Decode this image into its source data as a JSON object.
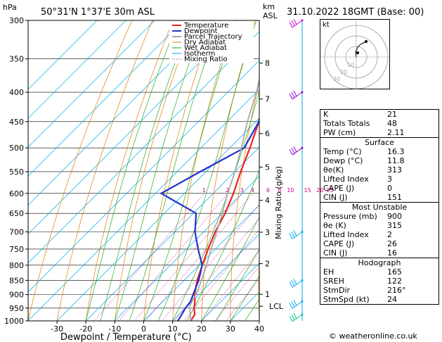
{
  "station": {
    "location": "50°31'N  1°37'E  30m  ASL",
    "datetime": "31.10.2022  18GMT  (Base: 00)",
    "credit": "© weatheronline.co.uk"
  },
  "chart_data": {
    "type": "skew-t",
    "title": "",
    "xlabel": "Dewpoint / Temperature (°C)",
    "ylabel_left": "hPa",
    "ylabel_right_top": "km",
    "ylabel_right_sub": "ASL",
    "mixing_axis_label": "Mixing Ratio (g/kg)",
    "xlim": [
      -40,
      40
    ],
    "x_ticks": [
      -30,
      -20,
      -10,
      0,
      10,
      20,
      30,
      40
    ],
    "pressure_range": [
      300,
      1000
    ],
    "pressure_ticks": [
      300,
      350,
      400,
      450,
      500,
      550,
      600,
      650,
      700,
      750,
      800,
      850,
      900,
      950,
      1000
    ],
    "km_ticks": [
      {
        "km": "8",
        "p": 356
      },
      {
        "km": "7",
        "p": 411
      },
      {
        "km": "6",
        "p": 472
      },
      {
        "km": "5",
        "p": 540
      },
      {
        "km": "4",
        "p": 617
      },
      {
        "km": "3",
        "p": 701
      },
      {
        "km": "2",
        "p": 795
      },
      {
        "km": "1",
        "p": 899
      }
    ],
    "lcl": {
      "label": "LCL",
      "p": 943
    },
    "mixing_ratio_labels": [
      "1",
      "2",
      "3",
      "4",
      "6",
      "8",
      "10",
      "15",
      "20",
      "25"
    ],
    "mixing_ratio_values": [
      1,
      2,
      3,
      4,
      6,
      8,
      10,
      15,
      20,
      25
    ],
    "legend": [
      "Temperature",
      "Dewpoint",
      "Parcel Trajectory",
      "Dry Adiabat",
      "Wet Adiabat",
      "Isotherm",
      "Mixing Ratio"
    ],
    "series": [
      {
        "name": "Temperature",
        "color": "#ee2222",
        "points": [
          [
            1000,
            16.3
          ],
          [
            975,
            15.5
          ],
          [
            950,
            13
          ],
          [
            925,
            11
          ],
          [
            900,
            8.5
          ],
          [
            850,
            4.5
          ],
          [
            800,
            1
          ],
          [
            750,
            -2.5
          ],
          [
            700,
            -6
          ],
          [
            650,
            -9
          ],
          [
            600,
            -13
          ],
          [
            550,
            -18
          ],
          [
            500,
            -23
          ],
          [
            450,
            -29
          ],
          [
            400,
            -36
          ],
          [
            350,
            -44
          ],
          [
            300,
            -53
          ]
        ]
      },
      {
        "name": "Dewpoint",
        "color": "#2233cc",
        "points": [
          [
            1000,
            11.8
          ],
          [
            975,
            11
          ],
          [
            950,
            10
          ],
          [
            925,
            9.5
          ],
          [
            900,
            8
          ],
          [
            850,
            5
          ],
          [
            800,
            1
          ],
          [
            750,
            -6
          ],
          [
            700,
            -13
          ],
          [
            650,
            -19
          ],
          [
            600,
            -38
          ],
          [
            550,
            -32
          ],
          [
            500,
            -25
          ],
          [
            450,
            -29
          ],
          [
            400,
            -37
          ],
          [
            350,
            -47
          ],
          [
            300,
            -58
          ]
        ]
      },
      {
        "name": "Parcel Trajectory",
        "color": "#aaaaaa",
        "points": [
          [
            1000,
            16.3
          ],
          [
            943,
            10.8
          ],
          [
            900,
            9
          ],
          [
            850,
            6
          ],
          [
            800,
            2.5
          ],
          [
            750,
            -1.5
          ],
          [
            700,
            -5.5
          ],
          [
            650,
            -10
          ],
          [
            600,
            -15
          ],
          [
            550,
            -20
          ],
          [
            500,
            -26
          ],
          [
            450,
            -33
          ],
          [
            400,
            -40
          ],
          [
            350,
            -49
          ],
          [
            300,
            -59
          ]
        ]
      }
    ],
    "colors": {
      "temperature": "#ee2222",
      "dewpoint": "#2233cc",
      "parcel": "#aaaaaa",
      "dry_adiabat": "#e07b00",
      "wet_adiabat": "#22aa22",
      "isotherm": "#00aaee",
      "mixing_ratio": "#cc0088"
    }
  },
  "hodograph": {
    "label": "kt",
    "ring_labels": [
      "10",
      "20",
      "30"
    ]
  },
  "indices": {
    "top": [
      {
        "k": "K",
        "v": "21"
      },
      {
        "k": "Totals Totals",
        "v": "48"
      },
      {
        "k": "PW (cm)",
        "v": "2.11"
      }
    ],
    "surface": {
      "title": "Surface",
      "rows": [
        {
          "k": "Temp (°C)",
          "v": "16.3"
        },
        {
          "k": "Dewp (°C)",
          "v": "11.8"
        },
        {
          "k": "θe(K)",
          "v": "313"
        },
        {
          "k": "Lifted Index",
          "v": "3"
        },
        {
          "k": "CAPE (J)",
          "v": "0"
        },
        {
          "k": "CIN (J)",
          "v": "151"
        }
      ]
    },
    "unstable": {
      "title": "Most Unstable",
      "rows": [
        {
          "k": "Pressure (mb)",
          "v": "900"
        },
        {
          "k": "θe (K)",
          "v": "315"
        },
        {
          "k": "Lifted Index",
          "v": "2"
        },
        {
          "k": "CAPE (J)",
          "v": "26"
        },
        {
          "k": "CIN (J)",
          "v": "16"
        }
      ]
    },
    "hodo": {
      "title": "Hodograph",
      "rows": [
        {
          "k": "EH",
          "v": "165"
        },
        {
          "k": "SREH",
          "v": "122"
        },
        {
          "k": "StmDir",
          "v": "216°"
        },
        {
          "k": "StmSpd (kt)",
          "v": "24"
        }
      ]
    }
  }
}
